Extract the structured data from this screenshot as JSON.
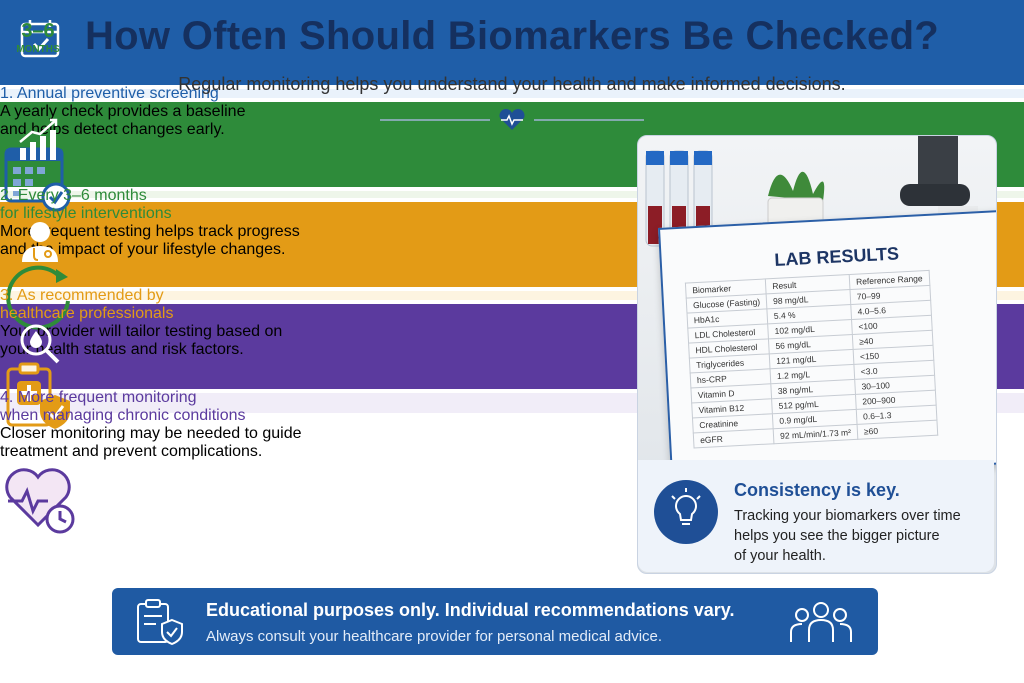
{
  "header": {
    "title": "How Often Should Biomarkers Be Checked?",
    "subtitle": "Regular monitoring helps you understand your health and make informed decisions."
  },
  "cards": [
    {
      "title_lines": [
        "1. Annual preventive screening"
      ],
      "description_lines": [
        "A yearly check provides a baseline",
        "and helps detect changes early."
      ]
    },
    {
      "title_lines": [
        "2. Every 3–6 months",
        "for lifestyle interventions"
      ],
      "description_lines": [
        "More frequent testing helps track progress",
        "and the impact of your lifestyle changes."
      ],
      "badge": {
        "number": "3–6",
        "unit": "MONTHS"
      }
    },
    {
      "title_lines": [
        "3. As recommended by",
        "healthcare professionals"
      ],
      "description_lines": [
        "Your provider will tailor testing based on",
        "your health status and risk factors."
      ]
    },
    {
      "title_lines": [
        "4. More frequent monitoring",
        "when managing chronic conditions"
      ],
      "description_lines": [
        "Closer monitoring may be needed to guide",
        "treatment and prevent complications."
      ]
    }
  ],
  "lab_results": {
    "title": "LAB RESULTS",
    "columns": [
      "Biomarker",
      "Result",
      "Reference Range"
    ],
    "rows": [
      [
        "Glucose (Fasting)",
        "98 mg/dL",
        "70–99"
      ],
      [
        "HbA1c",
        "5.4 %",
        "4.0–5.6"
      ],
      [
        "LDL Cholesterol",
        "102 mg/dL",
        "<100"
      ],
      [
        "HDL Cholesterol",
        "56 mg/dL",
        "≥40"
      ],
      [
        "Triglycerides",
        "121 mg/dL",
        "<150"
      ],
      [
        "hs-CRP",
        "1.2 mg/L",
        "<3.0"
      ],
      [
        "Vitamin D",
        "38 ng/mL",
        "30–100"
      ],
      [
        "Vitamin B12",
        "512 pg/mL",
        "200–900"
      ],
      [
        "Creatinine",
        "0.9 mg/dL",
        "0.6–1.3"
      ],
      [
        "eGFR",
        "92 mL/min/1.73 m²",
        "≥60"
      ]
    ]
  },
  "callout": {
    "title": "Consistency is key.",
    "lines": [
      "Tracking your biomarkers over time",
      "helps you see the bigger picture",
      "of your health."
    ]
  },
  "footer": {
    "title": "Educational purposes only. Individual recommendations vary.",
    "text": "Always consult your healthcare provider for personal medical advice."
  }
}
